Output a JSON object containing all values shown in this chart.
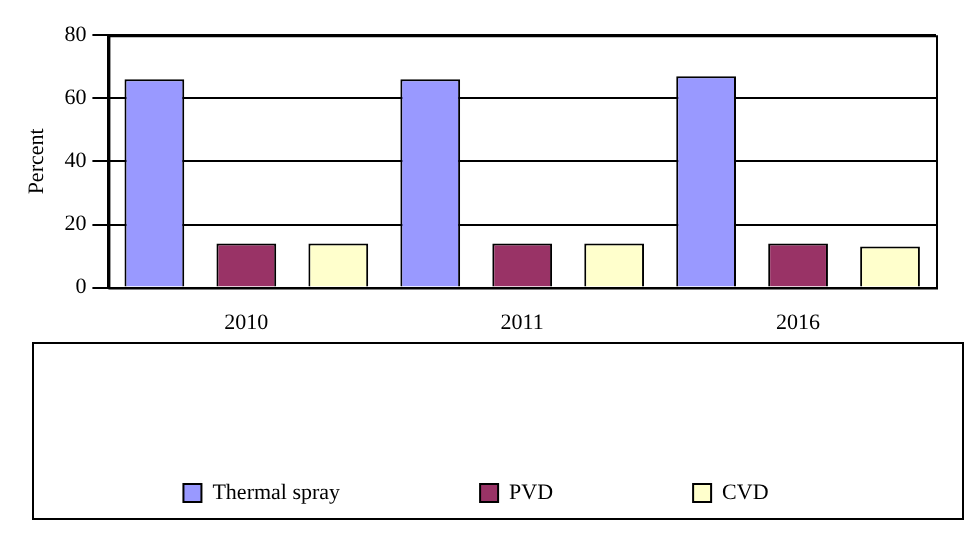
{
  "chart_data": {
    "type": "bar",
    "ylabel": "Percent",
    "categories": [
      "2010",
      "2011",
      "2016"
    ],
    "series": [
      {
        "name": "Thermal spray",
        "color": "#9999ff",
        "values": [
          66,
          66,
          67
        ]
      },
      {
        "name": "PVD",
        "color": "#993366",
        "values": [
          14,
          14,
          14
        ]
      },
      {
        "name": "CVD",
        "color": "#ffffcc",
        "values": [
          14,
          14,
          13
        ]
      }
    ],
    "ylim": [
      0,
      80
    ],
    "yticks": [
      0,
      20,
      40,
      60,
      80
    ],
    "grid": "y",
    "legend": "bottom"
  }
}
